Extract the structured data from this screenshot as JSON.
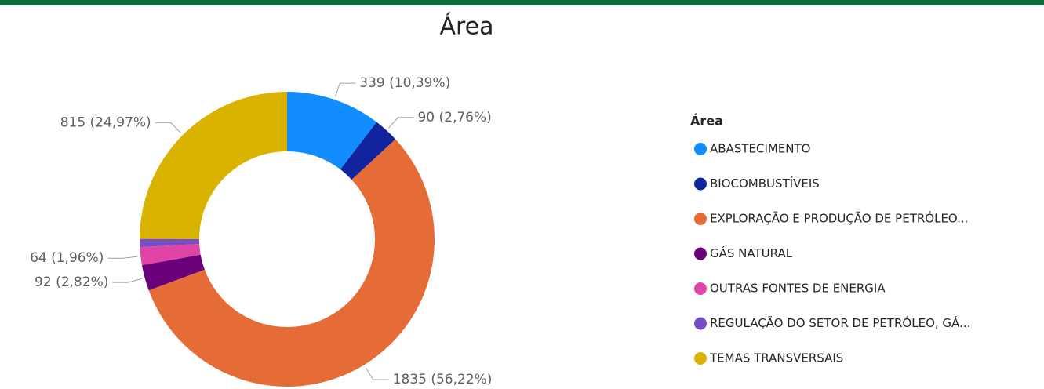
{
  "chart_data": {
    "type": "donut",
    "title": "Área",
    "legend_title": "Área",
    "legend": "right",
    "categories": [
      "ABASTECIMENTO",
      "BIOCOMBUSTÍVEIS",
      "EXPLORAÇÃO E PRODUÇÃO DE PETRÓLEO...",
      "GÁS NATURAL",
      "OUTRAS FONTES DE ENERGIA",
      "REGULAÇÃO DO SETOR DE PETRÓLEO, GÁ...",
      "TEMAS TRANSVERSAIS"
    ],
    "values": [
      339,
      90,
      1835,
      92,
      64,
      29,
      815
    ],
    "value_labels": [
      "339 (10,39%)",
      "90 (2,76%)",
      "1835 (56,22%)",
      "92 (2,82%)",
      "64 (1,96%)",
      null,
      "815 (24,97%)"
    ],
    "colors": [
      "#118DFF",
      "#12239E",
      "#E66C37",
      "#6B007B",
      "#E044A7",
      "#744EC2",
      "#D9B300"
    ]
  }
}
